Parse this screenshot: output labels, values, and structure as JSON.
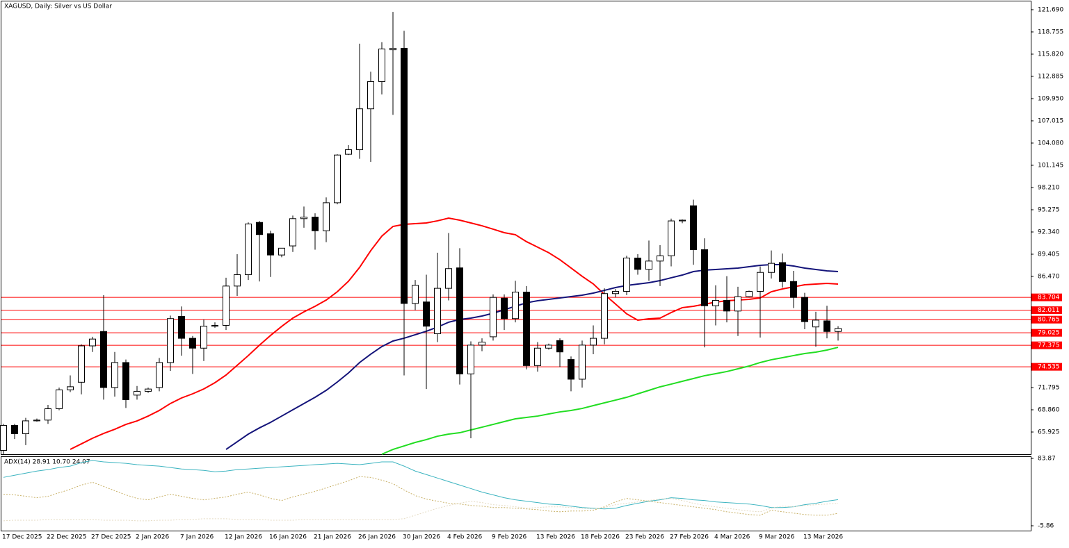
{
  "chart_data": [
    {
      "type": "candlestick",
      "title": "XAGUSD, Daily: Silver vs US Dollar",
      "categories": [
        "17 Dec 2025",
        null,
        null,
        null,
        "22 Dec 2025",
        null,
        null,
        null,
        "27 Dec 2025",
        null,
        null,
        null,
        "2 Jan 2026",
        null,
        null,
        null,
        "7 Jan 2026",
        null,
        null,
        null,
        "12 Jan 2026",
        null,
        null,
        null,
        "16 Jan 2026",
        null,
        null,
        null,
        "21 Jan 2026",
        null,
        null,
        null,
        "26 Jan 2026",
        null,
        null,
        null,
        "30 Jan 2026",
        null,
        null,
        null,
        "4 Feb 2026",
        null,
        null,
        null,
        "9 Feb 2026",
        null,
        null,
        null,
        "13 Feb 2026",
        null,
        null,
        null,
        "18 Feb 2026",
        null,
        null,
        null,
        "23 Feb 2026",
        null,
        null,
        null,
        "27 Feb 2026",
        null,
        null,
        null,
        "4 Mar 2026",
        null,
        null,
        null,
        "9 Mar 2026",
        null,
        null,
        null,
        "13 Mar 2026",
        null,
        null,
        null
      ],
      "open": [
        63.5,
        66.8,
        65.7,
        67.4,
        67.5,
        69,
        71.5,
        72.5,
        77.3,
        79.2,
        71.8,
        75.1,
        70.8,
        71.3,
        71.8,
        75.1,
        81.2,
        78.3,
        77,
        79.9,
        80,
        85.2,
        86.7,
        93.6,
        92.1,
        89.3,
        90.5,
        94.1,
        94.3,
        92.5,
        96.2,
        102.6,
        103.2,
        108.6,
        112.2,
        116.4,
        116.6,
        82.9,
        83.1,
        78.9,
        84.9,
        87.6,
        73.6,
        77.4,
        78.5,
        83.6,
        80.9,
        84.4,
        74.7,
        77,
        78,
        75.5,
        72.9,
        77.4,
        78.3,
        84.2,
        84.5,
        88.9,
        87.4,
        88.5,
        89.2,
        93.8,
        95.8,
        90,
        82.6,
        83.3,
        81.9,
        83.8,
        84.5,
        87,
        88.3,
        85.8,
        83.7,
        79.8,
        80.6,
        79.2
      ],
      "high": [
        67,
        67,
        67.8,
        67.7,
        69.5,
        71.8,
        73.4,
        77.5,
        78.5,
        84,
        76.5,
        75.5,
        72,
        71.8,
        75.7,
        81.3,
        82.5,
        78.6,
        80.8,
        80.4,
        86.3,
        89.4,
        93.6,
        93.8,
        92.5,
        90.2,
        94.5,
        95.7,
        94.8,
        96.9,
        102.6,
        103.8,
        117.2,
        113.5,
        117.4,
        121.4,
        118.9,
        86,
        86.7,
        89.6,
        92.2,
        90.2,
        77.9,
        78.3,
        84.1,
        84.1,
        85.9,
        85.2,
        77.8,
        77.6,
        78.3,
        75.9,
        78,
        80,
        84.9,
        84.8,
        89.2,
        89.4,
        91.2,
        90.6,
        94.1,
        94,
        96.6,
        91.5,
        85.3,
        86.5,
        85.1,
        84.6,
        87.8,
        89.9,
        89.5,
        87.2,
        84.3,
        81.8,
        82.6,
        79.9
      ],
      "low": [
        63,
        65,
        64.2,
        67.3,
        67,
        68.8,
        71.2,
        70.9,
        76.5,
        70.2,
        70.6,
        69.1,
        70.2,
        71.1,
        71.3,
        74,
        76,
        73.6,
        75.3,
        79.7,
        79.4,
        83.9,
        86,
        85.8,
        86.4,
        89,
        89.7,
        92.9,
        90,
        91,
        96,
        102.5,
        102,
        101.6,
        110.5,
        107.8,
        73.4,
        82,
        71.6,
        77.8,
        83.3,
        72.2,
        65.1,
        76.6,
        78,
        79.4,
        80.4,
        74.2,
        73.9,
        76.8,
        74.5,
        71.3,
        71.8,
        76.2,
        77.5,
        83.7,
        84,
        86.7,
        85.9,
        85.2,
        87.8,
        93.5,
        88,
        77.1,
        80,
        80.4,
        78.6,
        83.7,
        78.4,
        86.2,
        85,
        82.3,
        79.5,
        77.2,
        78.3,
        78
      ],
      "close": [
        66.8,
        65.7,
        67.4,
        67.5,
        69,
        71.5,
        71.9,
        77.3,
        78.2,
        71.8,
        75.1,
        70.2,
        71.3,
        71.6,
        75.1,
        80.9,
        78.3,
        77,
        79.9,
        80,
        85.2,
        86.7,
        93.4,
        92,
        89.3,
        90.2,
        94.1,
        94.3,
        92.5,
        96.2,
        102.5,
        103.2,
        108.6,
        112.2,
        116.5,
        116.6,
        82.9,
        85.3,
        79.9,
        84.9,
        87.5,
        73.6,
        77.4,
        77.8,
        83.7,
        80.9,
        84.4,
        74.7,
        77,
        77.4,
        76.5,
        72.9,
        77.4,
        78.3,
        84.2,
        84.5,
        88.9,
        87.4,
        88.5,
        89.2,
        93.8,
        93.9,
        90,
        82.6,
        83.3,
        81.9,
        83.8,
        84.5,
        87,
        88.2,
        85.8,
        83.7,
        80.5,
        80.7,
        79.2,
        79.6
      ],
      "up_color": "#ffffff",
      "down_color": "#000000",
      "lines": [
        {
          "color": "#ff0000",
          "values": [
            null,
            null,
            null,
            null,
            null,
            null,
            63.63,
            64.36,
            65.1,
            65.74,
            66.29,
            66.93,
            67.39,
            68.03,
            68.77,
            69.69,
            70.42,
            70.97,
            71.61,
            72.44,
            73.45,
            74.73,
            76.02,
            77.39,
            78.68,
            79.87,
            80.97,
            81.79,
            82.53,
            83.35,
            84.45,
            85.83,
            87.66,
            89.87,
            91.79,
            93.07,
            93.35,
            93.44,
            93.53,
            93.81,
            94.17,
            93.9,
            93.53,
            93.16,
            92.71,
            92.25,
            91.98,
            91.06,
            90.33,
            89.6,
            88.68,
            87.59,
            86.49,
            85.48,
            84.1,
            82.82,
            81.53,
            80.69,
            80.88,
            80.97,
            81.7,
            82.35,
            82.53,
            82.8,
            83.08,
            83.26,
            83.35,
            83.44,
            83.63,
            84.45,
            84.82,
            85.09,
            85.37,
            85.46,
            85.55,
            85.46
          ]
        },
        {
          "color": "#14147a",
          "values": [
            null,
            null,
            null,
            null,
            null,
            null,
            null,
            null,
            null,
            null,
            null,
            null,
            null,
            null,
            null,
            null,
            null,
            null,
            null,
            null,
            63.63,
            64.64,
            65.65,
            66.47,
            67.2,
            68.03,
            68.86,
            69.69,
            70.51,
            71.43,
            72.53,
            73.72,
            75.1,
            76.2,
            77.21,
            77.94,
            78.31,
            78.77,
            79.23,
            79.78,
            80.42,
            80.78,
            80.97,
            81.24,
            81.61,
            82.07,
            82.53,
            82.99,
            83.26,
            83.44,
            83.63,
            83.81,
            83.99,
            84.27,
            84.63,
            85.0,
            85.28,
            85.46,
            85.64,
            85.92,
            86.29,
            86.65,
            87.11,
            87.3,
            87.39,
            87.48,
            87.57,
            87.75,
            87.94,
            88.03,
            88.03,
            87.85,
            87.57,
            87.39,
            87.2,
            87.11
          ]
        },
        {
          "color": "#22dd22",
          "values": [
            null,
            null,
            null,
            null,
            null,
            null,
            null,
            null,
            null,
            null,
            null,
            null,
            null,
            null,
            null,
            null,
            null,
            null,
            null,
            null,
            null,
            null,
            null,
            null,
            null,
            null,
            null,
            null,
            null,
            null,
            null,
            null,
            null,
            null,
            62.99,
            63.63,
            64.09,
            64.55,
            64.92,
            65.37,
            65.65,
            65.83,
            66.2,
            66.56,
            66.93,
            67.3,
            67.67,
            67.85,
            68.03,
            68.31,
            68.58,
            68.77,
            69.04,
            69.41,
            69.78,
            70.14,
            70.51,
            70.97,
            71.43,
            71.89,
            72.25,
            72.62,
            72.99,
            73.36,
            73.63,
            73.91,
            74.27,
            74.64,
            75.1,
            75.47,
            75.74,
            76.02,
            76.29,
            76.47,
            76.75,
            77.11
          ]
        }
      ],
      "levels": [
        83.704,
        82.011,
        80.765,
        79.025,
        77.375,
        74.535
      ],
      "level_color": "#ff0000",
      "ylim": [
        62.9,
        122.97
      ],
      "yticks": [
        {
          "value": 121.69,
          "label": "121.690"
        },
        118.755,
        {
          "value": 115.82,
          "label": "115.820"
        },
        112.885,
        {
          "value": 109.95,
          "label": "109.950"
        },
        107.015,
        {
          "value": 104.08,
          "label": "104.080"
        },
        101.145,
        {
          "value": 98.21,
          "label": "98.210"
        },
        95.275,
        {
          "value": 92.34,
          "label": "92.340"
        },
        89.405,
        {
          "value": 86.47,
          "label": "86.470"
        },
        71.795,
        {
          "value": 68.86,
          "label": "68.860"
        },
        65.925
      ]
    },
    {
      "type": "line",
      "title": "ADX(14) 28.91 10.70 24.07",
      "series": [
        {
          "color": "#3cb4c0",
          "style": "solid",
          "values": [
            58.6,
            61.4,
            64.2,
            67.0,
            68.9,
            71.7,
            73.6,
            78.3,
            81.1,
            79.2,
            78.3,
            77.3,
            75.5,
            74.5,
            73.6,
            71.7,
            69.8,
            68.9,
            67.9,
            66.1,
            67.0,
            68.9,
            69.8,
            70.8,
            71.7,
            72.7,
            73.6,
            74.5,
            75.5,
            76.4,
            77.3,
            76.4,
            75.5,
            77.3,
            79.2,
            79.2,
            73.6,
            67.0,
            62.4,
            57.7,
            53.0,
            48.4,
            43.7,
            39.0,
            35.3,
            31.5,
            28.7,
            26.9,
            25.0,
            23.1,
            22.2,
            20.3,
            18.4,
            17.5,
            16.6,
            17.5,
            21.2,
            24.1,
            26.9,
            28.7,
            31.5,
            30.6,
            28.7,
            27.8,
            25.9,
            25.0,
            24.1,
            23.1,
            21.2,
            18.4,
            18.4,
            19.4,
            22.2,
            24.1,
            26.9,
            28.91
          ]
        },
        {
          "color": "#c8b066",
          "style": "dotted",
          "values": [
            36.2,
            35.3,
            33.4,
            31.5,
            33.4,
            38.1,
            42.7,
            48.4,
            52.1,
            46.5,
            40.9,
            35.3,
            30.6,
            28.7,
            32.5,
            36.2,
            33.4,
            30.6,
            28.7,
            30.6,
            32.5,
            36.2,
            39.0,
            35.3,
            30.6,
            27.8,
            32.5,
            36.2,
            39.9,
            44.6,
            49.3,
            54.0,
            59.6,
            58.6,
            54.9,
            50.2,
            41.8,
            34.3,
            29.7,
            26.9,
            24.1,
            23.1,
            21.2,
            20.3,
            18.4,
            18.4,
            17.5,
            16.6,
            15.6,
            13.8,
            12.8,
            13.8,
            13.8,
            14.7,
            19.4,
            26.0,
            30.6,
            28.7,
            26.9,
            25.0,
            23.1,
            21.2,
            19.4,
            17.5,
            15.6,
            12.8,
            11.0,
            9.1,
            8.2,
            14.7,
            12.8,
            11.0,
            9.1,
            8.2,
            8.2,
            10.7
          ]
        },
        {
          "color": "#e4dac2",
          "style": "dotted",
          "values": [
            0.7,
            1.6,
            1.6,
            1.6,
            2.5,
            2.5,
            2.5,
            2.5,
            2.5,
            1.6,
            1.6,
            1.6,
            0.7,
            0.7,
            1.6,
            1.6,
            2.5,
            2.5,
            3.5,
            3.5,
            3.5,
            2.5,
            2.5,
            2.5,
            1.6,
            1.6,
            1.6,
            2.5,
            2.5,
            2.5,
            2.5,
            2.5,
            2.5,
            2.5,
            2.5,
            2.5,
            3.5,
            8.2,
            12.8,
            17.5,
            21.2,
            24.1,
            26.9,
            25.0,
            22.2,
            21.2,
            19.4,
            17.5,
            18.4,
            19.4,
            19.4,
            18.4,
            17.5,
            16.6,
            18.4,
            22.2,
            24.1,
            25.9,
            27.8,
            29.7,
            30.6,
            27.8,
            24.1,
            21.2,
            19.4,
            17.5,
            15.6,
            13.8,
            12.8,
            17.5,
            20.3,
            19.4,
            21.2,
            22.2,
            23.1,
            24.07
          ]
        }
      ],
      "ylim": [
        -5.86,
        83.87
      ],
      "yticks": [
        83.87,
        -5.86
      ]
    }
  ]
}
